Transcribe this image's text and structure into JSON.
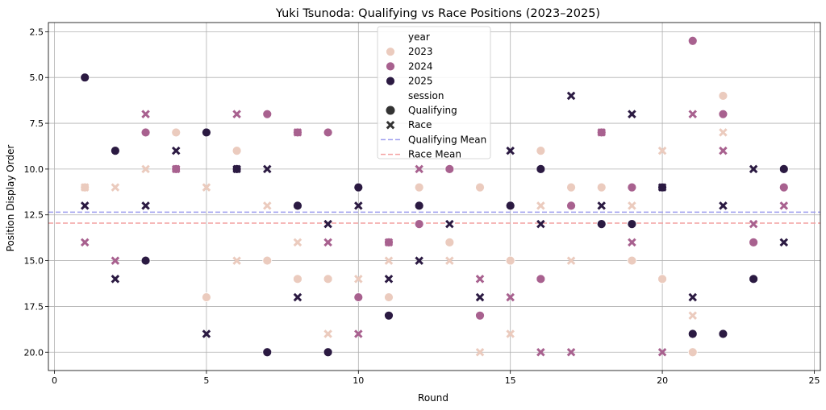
{
  "chart_data": {
    "type": "scatter",
    "title": "Yuki Tsunoda: Qualifying vs Race Positions (2023–2025)",
    "xlabel": "Round",
    "ylabel": "Position Display Order",
    "xlim": [
      -0.2,
      25.2
    ],
    "ylim": [
      21.0,
      2.0
    ],
    "y_inverted": true,
    "xticks": [
      0,
      5,
      10,
      15,
      20,
      25
    ],
    "yticks": [
      2.5,
      5.0,
      7.5,
      10.0,
      12.5,
      15.0,
      17.5,
      20.0
    ],
    "xtick_labels": [
      "0",
      "5",
      "10",
      "15",
      "20",
      "25"
    ],
    "ytick_labels": [
      "2.5",
      "5.0",
      "7.5",
      "10.0",
      "12.5",
      "15.0",
      "17.5",
      "20.0"
    ],
    "grid": true,
    "legend": {
      "placement": "top-center",
      "hue_title": "year",
      "style_title": "session",
      "years": [
        {
          "label": "2023",
          "color": "#ebcbbe"
        },
        {
          "label": "2024",
          "color": "#a8618f"
        },
        {
          "label": "2025",
          "color": "#2b1a42"
        }
      ],
      "sessions": [
        {
          "label": "Qualifying",
          "marker": "circle"
        },
        {
          "label": "Race",
          "marker": "x"
        }
      ],
      "lines": [
        {
          "label": "Qualifying Mean",
          "color": "#9d9dee"
        },
        {
          "label": "Race Mean",
          "color": "#f4a0a0"
        }
      ]
    },
    "reference_lines": [
      {
        "name": "Qualifying Mean",
        "y": 12.35,
        "color": "#9d9dee",
        "style": "dashed"
      },
      {
        "name": "Race Mean",
        "y": 12.95,
        "color": "#f4a0a0",
        "style": "dashed"
      }
    ],
    "series": [
      {
        "name": "2023 Qualifying",
        "year": "2023",
        "session": "Qualifying",
        "marker": "circle",
        "color": "#ebcbbe",
        "points": [
          [
            1,
            11
          ],
          [
            4,
            8
          ],
          [
            5,
            17
          ],
          [
            6,
            9
          ],
          [
            7,
            15
          ],
          [
            8,
            16
          ],
          [
            9,
            16
          ],
          [
            11,
            17
          ],
          [
            12,
            11
          ],
          [
            13,
            14
          ],
          [
            14,
            11
          ],
          [
            15,
            15
          ],
          [
            16,
            9
          ],
          [
            17,
            11
          ],
          [
            18,
            11
          ],
          [
            19,
            15
          ],
          [
            20,
            16
          ],
          [
            21,
            20
          ],
          [
            22,
            6
          ]
        ]
      },
      {
        "name": "2023 Race",
        "year": "2023",
        "session": "Race",
        "marker": "x",
        "color": "#ebcbbe",
        "points": [
          [
            1,
            11
          ],
          [
            2,
            11
          ],
          [
            3,
            10
          ],
          [
            5,
            11
          ],
          [
            6,
            15
          ],
          [
            7,
            12
          ],
          [
            8,
            14
          ],
          [
            9,
            19
          ],
          [
            10,
            16
          ],
          [
            11,
            15
          ],
          [
            13,
            15
          ],
          [
            14,
            20
          ],
          [
            15,
            19
          ],
          [
            16,
            12
          ],
          [
            17,
            15
          ],
          [
            19,
            12
          ],
          [
            20,
            9
          ],
          [
            21,
            18
          ],
          [
            22,
            8
          ]
        ]
      },
      {
        "name": "2024 Qualifying",
        "year": "2024",
        "session": "Qualifying",
        "marker": "circle",
        "color": "#a8618f",
        "points": [
          [
            3,
            8
          ],
          [
            4,
            10
          ],
          [
            7,
            7
          ],
          [
            8,
            8
          ],
          [
            9,
            8
          ],
          [
            10,
            17
          ],
          [
            11,
            14
          ],
          [
            12,
            13
          ],
          [
            13,
            10
          ],
          [
            14,
            18
          ],
          [
            16,
            16
          ],
          [
            17,
            12
          ],
          [
            18,
            8
          ],
          [
            19,
            11
          ],
          [
            21,
            3
          ],
          [
            22,
            7
          ],
          [
            23,
            14
          ],
          [
            24,
            11
          ]
        ]
      },
      {
        "name": "2024 Race",
        "year": "2024",
        "session": "Race",
        "marker": "x",
        "color": "#a8618f",
        "points": [
          [
            1,
            14
          ],
          [
            2,
            15
          ],
          [
            3,
            7
          ],
          [
            4,
            10
          ],
          [
            6,
            7
          ],
          [
            8,
            8
          ],
          [
            9,
            14
          ],
          [
            10,
            19
          ],
          [
            11,
            14
          ],
          [
            12,
            10
          ],
          [
            14,
            16
          ],
          [
            15,
            17
          ],
          [
            16,
            20
          ],
          [
            17,
            20
          ],
          [
            18,
            8
          ],
          [
            19,
            14
          ],
          [
            20,
            20
          ],
          [
            21,
            7
          ],
          [
            22,
            9
          ],
          [
            23,
            13
          ],
          [
            24,
            12
          ]
        ]
      },
      {
        "name": "2025 Qualifying",
        "year": "2025",
        "session": "Qualifying",
        "marker": "circle",
        "color": "#2b1a42",
        "points": [
          [
            1,
            5
          ],
          [
            2,
            9
          ],
          [
            3,
            15
          ],
          [
            5,
            8
          ],
          [
            6,
            10
          ],
          [
            7,
            20
          ],
          [
            8,
            12
          ],
          [
            9,
            20
          ],
          [
            10,
            11
          ],
          [
            11,
            18
          ],
          [
            12,
            12
          ],
          [
            15,
            12
          ],
          [
            16,
            10
          ],
          [
            18,
            13
          ],
          [
            19,
            13
          ],
          [
            20,
            11
          ],
          [
            21,
            19
          ],
          [
            22,
            19
          ],
          [
            23,
            16
          ],
          [
            24,
            10
          ]
        ]
      },
      {
        "name": "2025 Race",
        "year": "2025",
        "session": "Race",
        "marker": "x",
        "color": "#2b1a42",
        "points": [
          [
            1,
            12
          ],
          [
            2,
            16
          ],
          [
            3,
            12
          ],
          [
            4,
            9
          ],
          [
            5,
            19
          ],
          [
            6,
            10
          ],
          [
            7,
            10
          ],
          [
            8,
            17
          ],
          [
            9,
            13
          ],
          [
            10,
            12
          ],
          [
            11,
            16
          ],
          [
            12,
            15
          ],
          [
            13,
            13
          ],
          [
            14,
            17
          ],
          [
            15,
            9
          ],
          [
            16,
            13
          ],
          [
            17,
            6
          ],
          [
            18,
            12
          ],
          [
            19,
            7
          ],
          [
            20,
            11
          ],
          [
            21,
            17
          ],
          [
            22,
            12
          ],
          [
            23,
            10
          ],
          [
            24,
            14
          ]
        ]
      }
    ]
  }
}
